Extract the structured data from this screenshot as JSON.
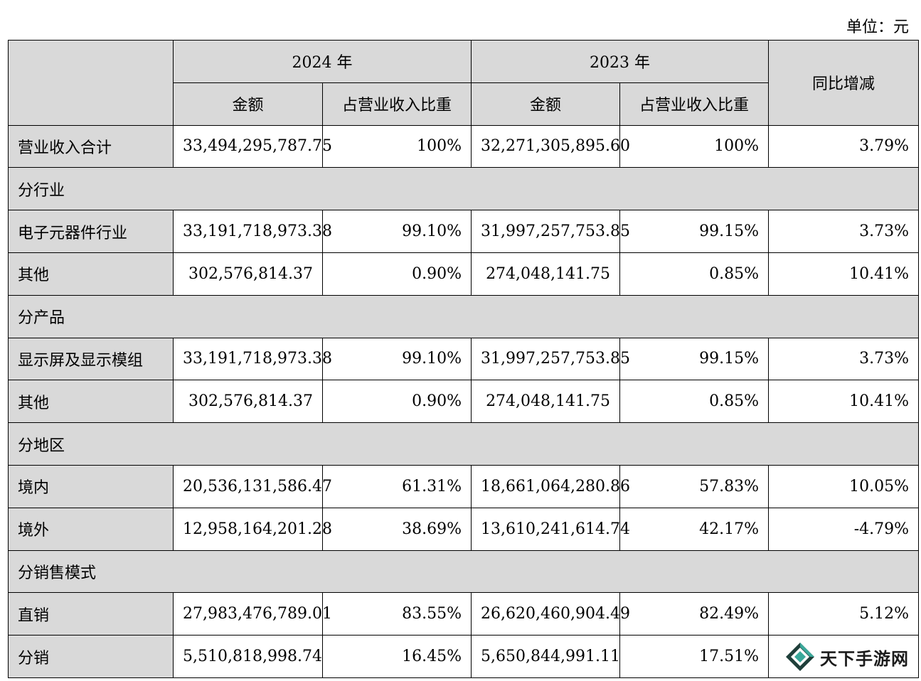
{
  "unit_label": "单位：元",
  "header": {
    "year_2024": "2024 年",
    "year_2023": "2023 年",
    "yoy": "同比增减",
    "amount": "金额",
    "ratio": "占营业收入比重"
  },
  "total_row": {
    "label": "营业收入合计",
    "amt_2024": "33,494,295,787.75",
    "pct_2024": "100%",
    "amt_2023": "32,271,305,895.60",
    "pct_2023": "100%",
    "yoy": "3.79%"
  },
  "groups": [
    {
      "title": "分行业",
      "rows": [
        {
          "label": "电子元器件行业",
          "amt_2024": "33,191,718,973.38",
          "pct_2024": "99.10%",
          "amt_2023": "31,997,257,753.85",
          "pct_2023": "99.15%",
          "yoy": "3.73%"
        },
        {
          "label": "其他",
          "amt_2024": "302,576,814.37",
          "pct_2024": "0.90%",
          "amt_2023": "274,048,141.75",
          "pct_2023": "0.85%",
          "yoy": "10.41%"
        }
      ]
    },
    {
      "title": "分产品",
      "rows": [
        {
          "label": "显示屏及显示模组",
          "amt_2024": "33,191,718,973.38",
          "pct_2024": "99.10%",
          "amt_2023": "31,997,257,753.85",
          "pct_2023": "99.15%",
          "yoy": "3.73%"
        },
        {
          "label": "其他",
          "amt_2024": "302,576,814.37",
          "pct_2024": "0.90%",
          "amt_2023": "274,048,141.75",
          "pct_2023": "0.85%",
          "yoy": "10.41%"
        }
      ]
    },
    {
      "title": "分地区",
      "rows": [
        {
          "label": "境内",
          "amt_2024": "20,536,131,586.47",
          "pct_2024": "61.31%",
          "amt_2023": "18,661,064,280.86",
          "pct_2023": "57.83%",
          "yoy": "10.05%"
        },
        {
          "label": "境外",
          "amt_2024": "12,958,164,201.28",
          "pct_2024": "38.69%",
          "amt_2023": "13,610,241,614.74",
          "pct_2023": "42.17%",
          "yoy": "-4.79%"
        }
      ]
    },
    {
      "title": "分销售模式",
      "rows": [
        {
          "label": "直销",
          "amt_2024": "27,983,476,789.01",
          "pct_2024": "83.55%",
          "amt_2023": "26,620,460,904.49",
          "pct_2023": "82.49%",
          "yoy": "5.12%"
        },
        {
          "label": "分销",
          "amt_2024": "5,510,818,998.74",
          "pct_2024": "16.45%",
          "amt_2023": "5,650,844,991.11",
          "pct_2023": "17.51%",
          "yoy": ""
        }
      ]
    }
  ],
  "watermark": {
    "text": "天下手游网",
    "icon": "diamond-logo-icon",
    "color_dark": "#1f3f3a",
    "color_light": "#3aa89a"
  }
}
